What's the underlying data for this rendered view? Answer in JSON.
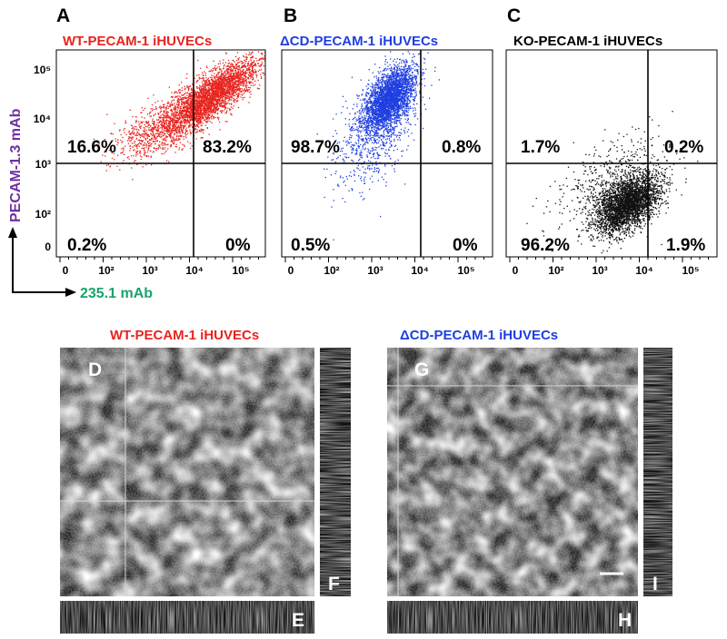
{
  "panel_letters": [
    "A",
    "B",
    "C"
  ],
  "y_axis_label": "PECAM-1.3 mAb",
  "x_axis_label": "235.1 mAb",
  "colors": {
    "red": "#e8241e",
    "blue": "#1f3fe0",
    "black": "#111111",
    "purple": "#7030a0",
    "green": "#1aa36b"
  },
  "chart_data": [
    {
      "type": "scatter",
      "title": "WT-PECAM-1 iHUVECs",
      "series": [
        {
          "color": "#e8241e"
        }
      ],
      "x_ticks": [
        "0",
        "10²",
        "10³",
        "10⁴",
        "10⁵"
      ],
      "y_ticks": [
        "0",
        "10²",
        "10³",
        "10⁴",
        "10⁵"
      ],
      "quadrants": {
        "upper_left": "16.6%",
        "upper_right": "83.2%",
        "lower_left": "0.2%",
        "lower_right": "0%"
      }
    },
    {
      "type": "scatter",
      "title": "ΔCD-PECAM-1 iHUVECs",
      "series": [
        {
          "color": "#1f3fe0"
        }
      ],
      "x_ticks": [
        "0",
        "10²",
        "10³",
        "10⁴",
        "10⁵"
      ],
      "quadrants": {
        "upper_left": "98.7%",
        "upper_right": "0.8%",
        "lower_left": "0.5%",
        "lower_right": "0%"
      }
    },
    {
      "type": "scatter",
      "title": "KO-PECAM-1 iHUVECs",
      "series": [
        {
          "color": "#111111"
        }
      ],
      "x_ticks": [
        "0",
        "10²",
        "10³",
        "10⁴",
        "10⁵"
      ],
      "quadrants": {
        "upper_left": "1.7%",
        "upper_right": "0.2%",
        "lower_left": "96.2%",
        "lower_right": "1.9%"
      }
    }
  ],
  "micrographs": {
    "left_title": "WT-PECAM-1 iHUVECs",
    "right_title": "ΔCD-PECAM-1 iHUVECs",
    "labels": [
      "D",
      "E",
      "F",
      "G",
      "H",
      "I"
    ]
  }
}
